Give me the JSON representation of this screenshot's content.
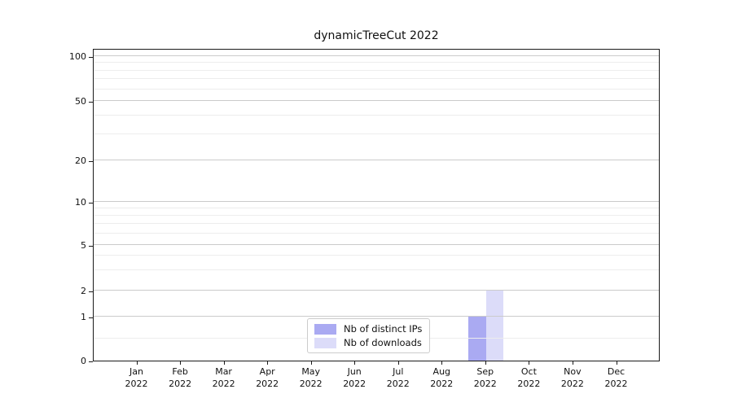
{
  "figure": {
    "title": "dynamicTreeCut 2022"
  },
  "chart_data": {
    "type": "bar",
    "title": "dynamicTreeCut 2022",
    "categories": [
      "Jan 2022",
      "Feb 2022",
      "Mar 2022",
      "Apr 2022",
      "May 2022",
      "Jun 2022",
      "Jul 2022",
      "Aug 2022",
      "Sep 2022",
      "Oct 2022",
      "Nov 2022",
      "Dec 2022"
    ],
    "series": [
      {
        "name": "Nb of distinct IPs",
        "color": "#aaaaf2",
        "values": [
          0,
          0,
          0,
          0,
          0,
          0,
          0,
          0,
          1,
          0,
          0,
          0
        ]
      },
      {
        "name": "Nb of downloads",
        "color": "#dcdcf9",
        "values": [
          0,
          0,
          0,
          0,
          0,
          0,
          0,
          0,
          2,
          0,
          0,
          0
        ]
      }
    ],
    "xlabel": "",
    "ylabel": "",
    "y_axis": {
      "scale": "symlog",
      "major_ticks": [
        0,
        1,
        2,
        5,
        10,
        20,
        50,
        100
      ],
      "minor_ticks": [
        0.5,
        3,
        4,
        6,
        7,
        8,
        9,
        30,
        40,
        60,
        70,
        80,
        90
      ],
      "ylim": [
        0,
        114
      ]
    },
    "grid": true,
    "legend_position": "lower center",
    "colors": {
      "grid_major": "#cbcbcb",
      "grid_minor": "#ededed",
      "spine": "#1a1a1a"
    }
  }
}
